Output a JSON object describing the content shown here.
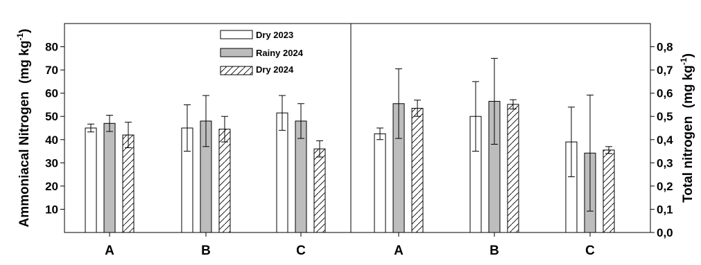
{
  "chart_data": {
    "type": "bar",
    "legend_position": "top-center",
    "series_meta": [
      {
        "name": "Dry 2023",
        "fill": "#ffffff",
        "pattern": "none"
      },
      {
        "name": "Rainy 2024",
        "fill": "#bdbdbd",
        "pattern": "none"
      },
      {
        "name": "Dry 2024",
        "fill": "#ffffff",
        "pattern": "diagonal-hatch"
      }
    ],
    "left_panel": {
      "ylabel": "Ammoniacal Nitrogen",
      "yunit_base": "(mg kg",
      "yunit_exp": "-1",
      "yunit_close": ")",
      "ylim": [
        0,
        90
      ],
      "yticks": [
        "10",
        "20",
        "30",
        "40",
        "50",
        "60",
        "70",
        "80"
      ],
      "categories": [
        "A",
        "B",
        "C"
      ],
      "series": [
        {
          "name": "Dry 2023",
          "values": [
            45,
            45,
            51.5
          ],
          "errors": [
            1.7,
            10,
            7.5
          ]
        },
        {
          "name": "Rainy 2024",
          "values": [
            47,
            48,
            48
          ],
          "errors": [
            3.5,
            11,
            7.5
          ]
        },
        {
          "name": "Dry 2024",
          "values": [
            42,
            44.5,
            36
          ],
          "errors": [
            5.5,
            5.5,
            3.5
          ]
        }
      ]
    },
    "right_panel": {
      "ylabel": "Total nitrogen",
      "yunit_base": "(mg kg",
      "yunit_exp": "-1",
      "yunit_close": ")",
      "ylim": [
        0,
        0.9
      ],
      "yticks": [
        "0,0",
        "0,1",
        "0,2",
        "0,3",
        "0,4",
        "0,5",
        "0,6",
        "0,7",
        "0,8"
      ],
      "categories": [
        "A",
        "B",
        "C"
      ],
      "series": [
        {
          "name": "Dry 2023",
          "values": [
            0.425,
            0.5,
            0.39
          ],
          "errors": [
            0.025,
            0.15,
            0.15
          ]
        },
        {
          "name": "Rainy 2024",
          "values": [
            0.555,
            0.565,
            0.342
          ],
          "errors": [
            0.15,
            0.185,
            0.25
          ]
        },
        {
          "name": "Dry 2024",
          "values": [
            0.535,
            0.552,
            0.355
          ],
          "errors": [
            0.035,
            0.02,
            0.015
          ]
        }
      ]
    }
  }
}
